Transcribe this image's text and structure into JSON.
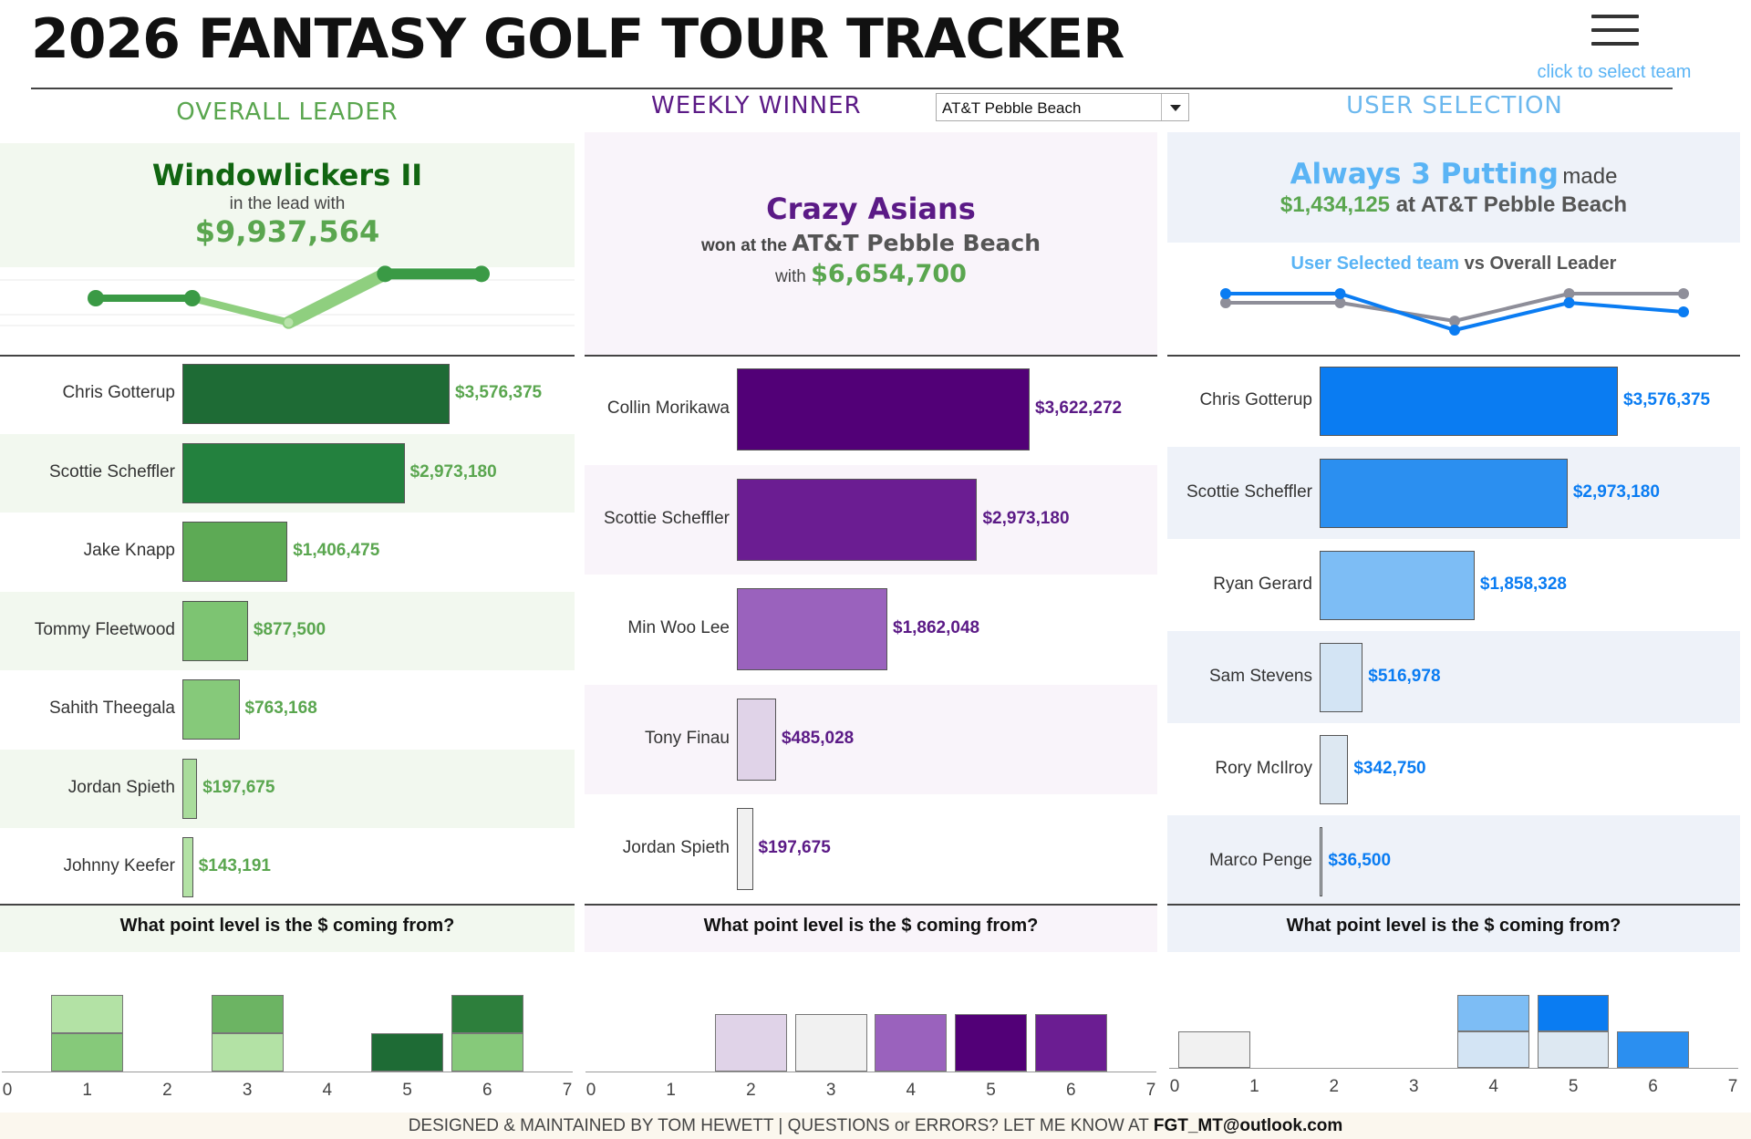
{
  "header": {
    "title": "2026 FANTASY GOLF TOUR TRACKER",
    "menu_icon": "hamburger-menu-icon",
    "menu_hint": "click to select team"
  },
  "sections": {
    "overall": "OVERALL LEADER",
    "weekly": "WEEKLY WINNER",
    "user": "USER SELECTION"
  },
  "event_select": {
    "value": "AT&T Pebble Beach"
  },
  "overall": {
    "team": "Windowlickers II",
    "sub": "in the lead with",
    "amount": "$9,937,564",
    "trend": [
      3,
      3,
      1,
      5,
      5
    ],
    "players": [
      {
        "name": "Chris Gotterup",
        "value": 3576375,
        "label": "$3,576,375",
        "color": "#1e6b35"
      },
      {
        "name": "Scottie Scheffler",
        "value": 2973180,
        "label": "$2,973,180",
        "color": "#23813e"
      },
      {
        "name": "Jake Knapp",
        "value": 1406475,
        "label": "$1,406,475",
        "color": "#5daa55"
      },
      {
        "name": "Tommy Fleetwood",
        "value": 877500,
        "label": "$877,500",
        "color": "#7dc472"
      },
      {
        "name": "Sahith Theegala",
        "value": 763168,
        "label": "$763,168",
        "color": "#86c97a"
      },
      {
        "name": "Jordan Spieth",
        "value": 197675,
        "label": "$197,675",
        "color": "#a9dc9b"
      },
      {
        "name": "Johnny Keefer",
        "value": 143191,
        "label": "$143,191",
        "color": "#b3e2a5"
      }
    ]
  },
  "weekly": {
    "team": "Crazy Asians",
    "won_at": "won at the",
    "event": "AT&T Pebble Beach",
    "with": "with",
    "amount": "$6,654,700",
    "players": [
      {
        "name": "Collin Morikawa",
        "value": 3622272,
        "label": "$3,622,272",
        "color": "#520077"
      },
      {
        "name": "Scottie Scheffler",
        "value": 2973180,
        "label": "$2,973,180",
        "color": "#6b1d92"
      },
      {
        "name": "Min Woo Lee",
        "value": 1862048,
        "label": "$1,862,048",
        "color": "#9a62bd"
      },
      {
        "name": "Tony Finau",
        "value": 485028,
        "label": "$485,028",
        "color": "#e0d3e8"
      },
      {
        "name": "Jordan Spieth",
        "value": 197675,
        "label": "$197,675",
        "color": "#f1f1f1"
      }
    ]
  },
  "user": {
    "team": "Always 3 Putting",
    "made": "made",
    "amount": "$1,434,125",
    "at": "at",
    "event": "AT&T Pebble Beach",
    "vs_user": "User Selected team",
    "vs": "vs",
    "vs_leader": "Overall Leader",
    "trend_user": [
      5,
      5,
      1,
      4,
      3
    ],
    "trend_leader": [
      4,
      4,
      2,
      5,
      5
    ],
    "players": [
      {
        "name": "Chris Gotterup",
        "value": 3576375,
        "label": "$3,576,375",
        "color": "#0a7cf2"
      },
      {
        "name": "Scottie Scheffler",
        "value": 2973180,
        "label": "$2,973,180",
        "color": "#2b8ff0"
      },
      {
        "name": "Ryan Gerard",
        "value": 1858328,
        "label": "$1,858,328",
        "color": "#7dbdf5"
      },
      {
        "name": "Sam Stevens",
        "value": 516978,
        "label": "$516,978",
        "color": "#d3e4f4"
      },
      {
        "name": "Rory McIlroy",
        "value": 342750,
        "label": "$342,750",
        "color": "#dde8f2"
      },
      {
        "name": "Marco Penge",
        "value": 36500,
        "label": "$36,500",
        "color": "#cfd8e0"
      }
    ]
  },
  "point_levels": {
    "question": "What point level is the $ coming from?",
    "ticks": [
      "0",
      "1",
      "2",
      "3",
      "4",
      "5",
      "6",
      "7"
    ],
    "overall": [
      {
        "level": 1,
        "stack": [
          {
            "h": 1,
            "color": "#86c97a"
          },
          {
            "h": 1,
            "color": "#b3e2a5"
          }
        ]
      },
      {
        "level": 3,
        "stack": [
          {
            "h": 1,
            "color": "#b3e2a5"
          },
          {
            "h": 1,
            "color": "#6cb463"
          }
        ]
      },
      {
        "level": 5,
        "stack": [
          {
            "h": 1,
            "color": "#1e6b35"
          }
        ]
      },
      {
        "level": 6,
        "stack": [
          {
            "h": 1,
            "color": "#86c97a"
          },
          {
            "h": 1,
            "color": "#2d7f3c"
          }
        ]
      }
    ],
    "weekly": [
      {
        "level": 2,
        "stack": [
          {
            "h": 1.5,
            "color": "#e0d3e8"
          }
        ]
      },
      {
        "level": 3,
        "stack": [
          {
            "h": 1.5,
            "color": "#f1f1f1"
          }
        ]
      },
      {
        "level": 4,
        "stack": [
          {
            "h": 1.5,
            "color": "#9a62bd"
          }
        ]
      },
      {
        "level": 5,
        "stack": [
          {
            "h": 1.5,
            "color": "#520077"
          }
        ]
      },
      {
        "level": 6,
        "stack": [
          {
            "h": 1.5,
            "color": "#6b1d92"
          }
        ]
      }
    ],
    "user": [
      {
        "level": 0.5,
        "stack": [
          {
            "h": 1,
            "color": "#f1f1f1"
          }
        ]
      },
      {
        "level": 4,
        "stack": [
          {
            "h": 1,
            "color": "#d3e4f4"
          },
          {
            "h": 1,
            "color": "#7dbdf5"
          }
        ]
      },
      {
        "level": 5,
        "stack": [
          {
            "h": 1,
            "color": "#dde8f2"
          },
          {
            "h": 1,
            "color": "#0a7cf2"
          }
        ]
      },
      {
        "level": 6,
        "stack": [
          {
            "h": 1,
            "color": "#2b8ff0"
          }
        ]
      }
    ]
  },
  "footer": {
    "text": "DESIGNED & MAINTAINED BY TOM HEWETT  |  QUESTIONS or ERRORS? LET ME KNOW AT",
    "email": "FGT_MT@outlook.com"
  },
  "colors": {
    "overall_accent": "#5aa64f",
    "weekly_accent": "#5b1a86",
    "user_accent": "#5ab4f5"
  }
}
